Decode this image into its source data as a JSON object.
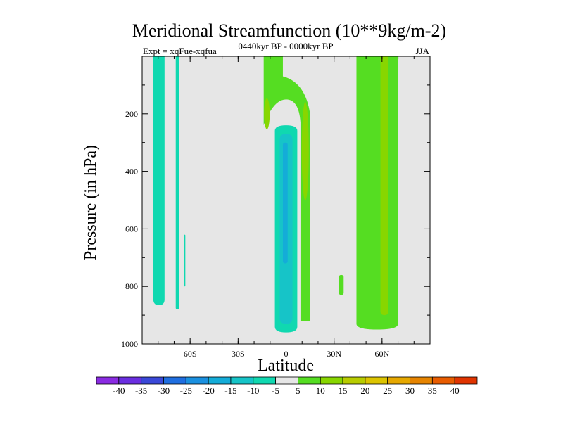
{
  "chart_data": {
    "type": "contour",
    "title": "Meridional Streamfunction (10**9kg/m-2)",
    "subtitle_left": "Expt = xqFue-xqfua",
    "subtitle_center": "0440kyr BP - 0000kyr BP",
    "subtitle_right": "JJA",
    "xlabel": "Latitude",
    "ylabel": "Pressure (in hPa)",
    "xlim": [
      -90,
      90
    ],
    "ylim": [
      0,
      1000
    ],
    "x_ticks": [
      {
        "value": -60,
        "label": "60S"
      },
      {
        "value": -30,
        "label": "30S"
      },
      {
        "value": 0,
        "label": "0"
      },
      {
        "value": 30,
        "label": "30N"
      },
      {
        "value": 60,
        "label": "60N"
      }
    ],
    "y_ticks": [
      {
        "value": 200,
        "label": "200"
      },
      {
        "value": 400,
        "label": "400"
      },
      {
        "value": 600,
        "label": "600"
      },
      {
        "value": 800,
        "label": "800"
      },
      {
        "value": 1000,
        "label": "1000"
      }
    ],
    "colorbar": {
      "levels": [
        "-40",
        "-35",
        "-30",
        "-25",
        "-20",
        "-15",
        "-10",
        "-5",
        "5",
        "10",
        "15",
        "20",
        "25",
        "30",
        "35",
        "40"
      ],
      "colors": [
        "#8a2be2",
        "#6a2ee0",
        "#3a48d8",
        "#1f6ee0",
        "#1a90e0",
        "#14acd8",
        "#16c4c8",
        "#10d8b0",
        "#e6e6e6",
        "#55dd22",
        "#88d600",
        "#b8cc00",
        "#dcc400",
        "#e6a800",
        "#e68400",
        "#e85c00",
        "#e03400"
      ]
    },
    "regions": [
      {
        "name": "sh-polar-band",
        "level": "-5",
        "color": "#10d8b0",
        "x": [
          -83,
          -76
        ],
        "p": [
          0,
          865
        ]
      },
      {
        "name": "sh-65s-strip",
        "level": "-5",
        "color": "#10d8b0",
        "x": [
          -69,
          -67
        ],
        "p": [
          0,
          880
        ]
      },
      {
        "name": "sh-60s-sliver",
        "level": "-5",
        "color": "#10d8b0",
        "x": [
          -64,
          -63
        ],
        "p": [
          620,
          800
        ]
      },
      {
        "name": "equatorial-cell-outer",
        "level": "-5",
        "color": "#10d8b0",
        "x": [
          -7,
          7
        ],
        "p": [
          240,
          960
        ]
      },
      {
        "name": "equatorial-cell-mid",
        "level": "-10",
        "color": "#16c4c8",
        "x": [
          -4,
          4
        ],
        "p": [
          270,
          930
        ]
      },
      {
        "name": "equatorial-cell-core",
        "level": "-15",
        "color": "#14acd8",
        "x": [
          -2,
          1
        ],
        "p": [
          300,
          720
        ]
      },
      {
        "name": "hadley-arch",
        "level": "5",
        "color": "#55dd22",
        "x": [
          -14,
          14
        ],
        "p": [
          0,
          920
        ]
      },
      {
        "name": "hadley-arch-inner",
        "level": "10",
        "color": "#88d600",
        "x": [
          -12,
          12
        ],
        "p": [
          160,
          550
        ]
      },
      {
        "name": "isolated-35n",
        "level": "5",
        "color": "#55dd22",
        "x": [
          33,
          36
        ],
        "p": [
          760,
          830
        ]
      },
      {
        "name": "nh-main-band",
        "level": "5",
        "color": "#55dd22",
        "x": [
          44,
          70
        ],
        "p": [
          0,
          950
        ]
      },
      {
        "name": "nh-inner-band",
        "level": "10",
        "color": "#88d600",
        "x": [
          59,
          64
        ],
        "p": [
          0,
          900
        ]
      }
    ]
  }
}
